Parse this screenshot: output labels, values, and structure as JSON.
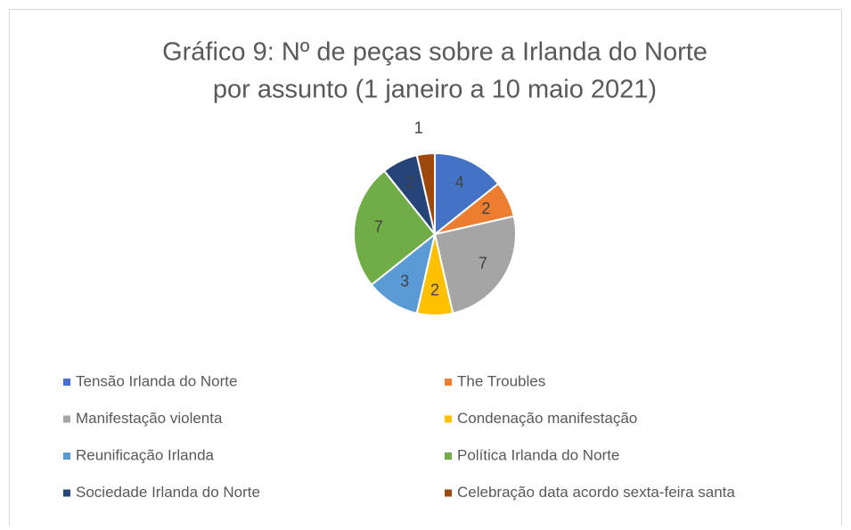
{
  "chart_data": {
    "type": "pie",
    "title": [
      "Gráfico 9: Nº de peças sobre a Irlanda do Norte",
      "por assunto (1 janeiro a 10 maio 2021)"
    ],
    "categories": [
      "Tensão Irlanda do Norte",
      "The Troubles",
      "Manifestação violenta",
      "Condenação manifestação",
      "Reunificação Irlanda",
      "Política Irlanda do Norte",
      "Sociedade Irlanda do Norte",
      "Celebração data acordo sexta-feira santa"
    ],
    "values": [
      4,
      2,
      7,
      2,
      3,
      7,
      2,
      1
    ],
    "colors": [
      "#4472c4",
      "#ed7d31",
      "#a5a5a5",
      "#ffc000",
      "#5b9bd5",
      "#70ad47",
      "#264478",
      "#9e480e"
    ],
    "legend": "bottom"
  }
}
